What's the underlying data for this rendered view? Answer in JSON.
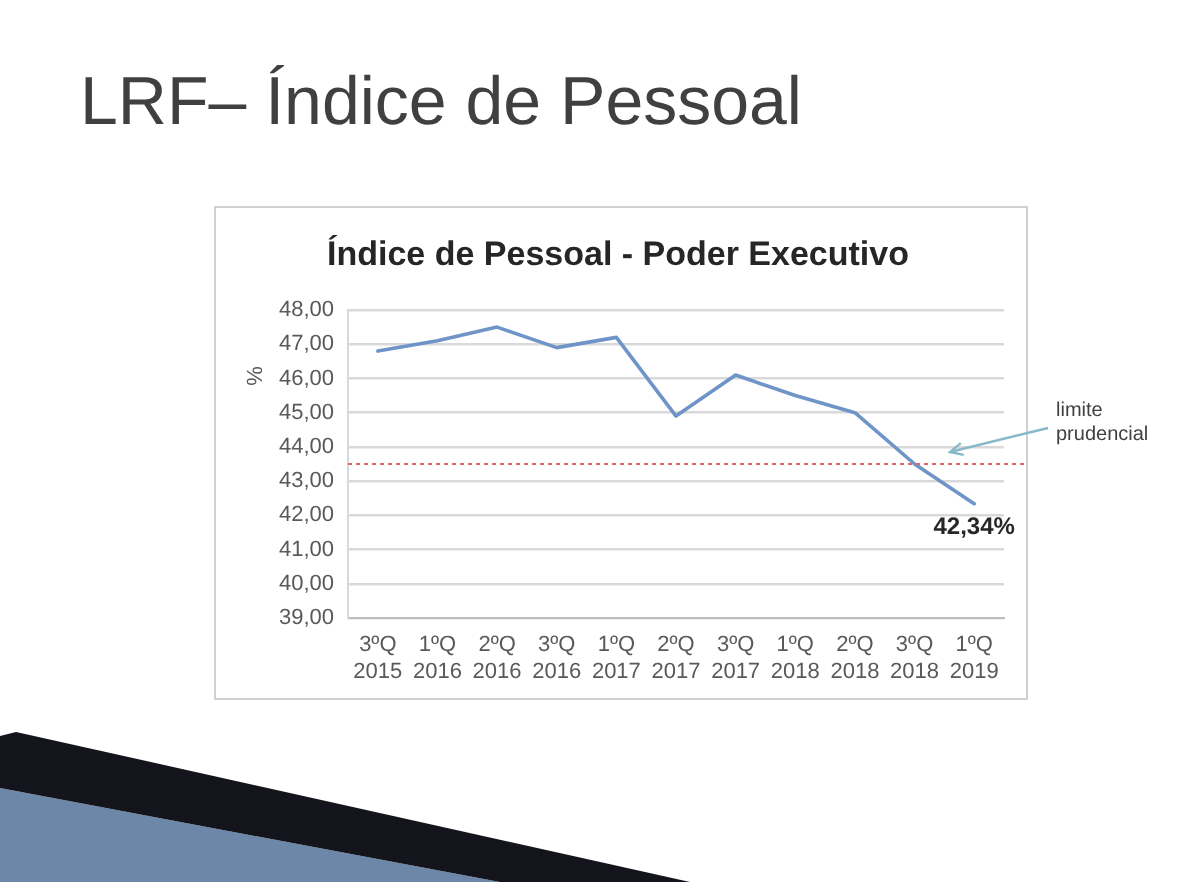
{
  "chart_data": {
    "type": "line",
    "title": "LRF– Índice de Pessoal",
    "subtitle": "Índice de Pessoal - Poder Executivo",
    "ylabel": "%",
    "categories": [
      "3ºQ 2015",
      "1ºQ 2016",
      "2ºQ 2016",
      "3ºQ 2016",
      "1ºQ 2017",
      "2ºQ 2017",
      "3ºQ 2017",
      "1ºQ 2018",
      "2ºQ 2018",
      "3ºQ 2018",
      "1ºQ 2019"
    ],
    "values": [
      46.8,
      47.1,
      47.5,
      46.9,
      47.2,
      44.9,
      46.1,
      45.5,
      45.0,
      43.5,
      42.34
    ],
    "value_labels": [
      null,
      null,
      null,
      null,
      null,
      null,
      null,
      null,
      null,
      null,
      "42,34%"
    ],
    "color": "#6f95c8",
    "ylim": [
      39,
      48
    ],
    "yticks": [
      {
        "value": 39,
        "label": "39,00"
      },
      {
        "value": 40,
        "label": "40,00"
      },
      {
        "value": 41,
        "label": "41,00"
      },
      {
        "value": 42,
        "label": "42,00"
      },
      {
        "value": 43,
        "label": "43,00"
      },
      {
        "value": 44,
        "label": "44,00"
      },
      {
        "value": 45,
        "label": "45,00"
      },
      {
        "value": 46,
        "label": "46,00"
      },
      {
        "value": 47,
        "label": "47,00"
      },
      {
        "value": 48,
        "label": "48,00"
      }
    ],
    "grid": "y",
    "marker": "none",
    "line_style": "solid",
    "ref_lines": [
      {
        "axis": "y",
        "value": 43.5,
        "label": "limite prudencial",
        "color": "#e06666",
        "line_style": "dotted"
      }
    ]
  }
}
